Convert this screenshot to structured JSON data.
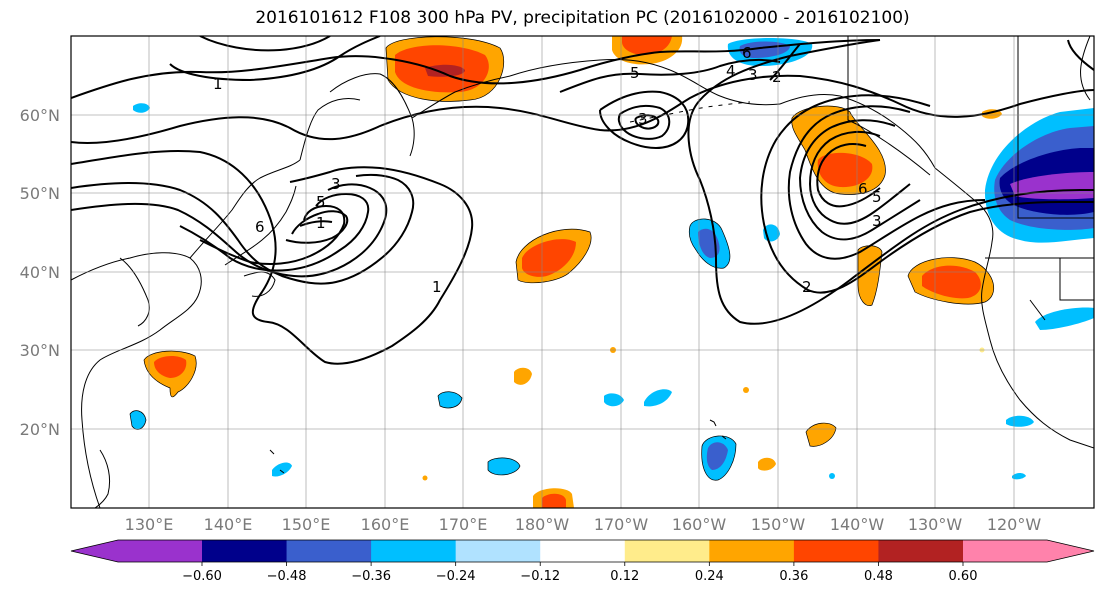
{
  "title": "2016101612 F108 300 hPa PV, precipitation PC (2016102000 - 2016102100)",
  "lat_ticks": [
    "60°N",
    "50°N",
    "40°N",
    "30°N",
    "20°N"
  ],
  "lon_ticks": [
    "130°E",
    "140°E",
    "150°E",
    "160°E",
    "170°E",
    "180°W",
    "170°W",
    "160°W",
    "150°W",
    "140°W",
    "130°W",
    "120°W"
  ],
  "contour_labels": [
    "1",
    "3",
    "5",
    "6",
    "1",
    "1",
    "5",
    "3",
    "4",
    "6",
    "2",
    "6",
    "5",
    "3",
    "2",
    "3"
  ],
  "colorbar": {
    "tick_labels": [
      "−0.60",
      "−0.48",
      "−0.36",
      "−0.24",
      "−0.12",
      "0.12",
      "0.24",
      "0.36",
      "0.48",
      "0.60"
    ],
    "colors": [
      "#9a32cd",
      "#00008b",
      "#3a5fcd",
      "#00bfff",
      "#b0e2ff",
      "#ffffff",
      "#ffec8b",
      "#ffa500",
      "#ff4500",
      "#b22222",
      "#ff82ab"
    ]
  }
}
